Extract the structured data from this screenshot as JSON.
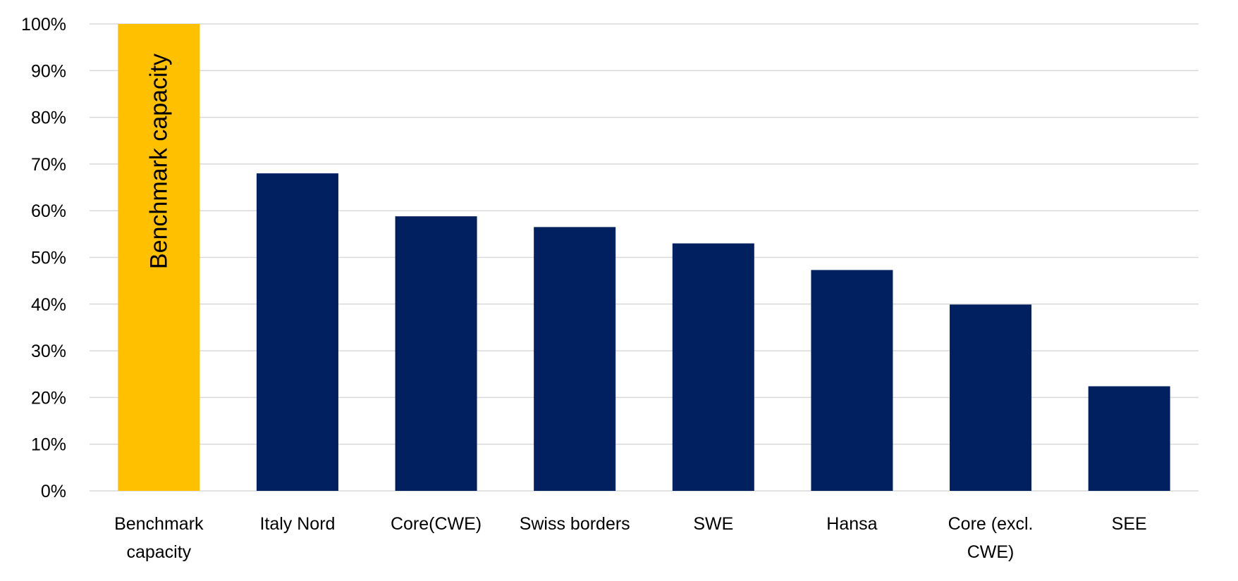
{
  "chart_data": {
    "type": "bar",
    "categories": [
      [
        "Benchmark",
        "capacity"
      ],
      [
        "Italy Nord"
      ],
      [
        "Core(CWE)"
      ],
      [
        "Swiss borders"
      ],
      [
        "SWE"
      ],
      [
        "Hansa"
      ],
      [
        "Core (excl.",
        "CWE)"
      ],
      [
        "SEE"
      ]
    ],
    "values": [
      100,
      68,
      58.8,
      56.5,
      53,
      47.3,
      39.9,
      22.4
    ],
    "bar_colors": [
      "#FFC000",
      "#002060",
      "#002060",
      "#002060",
      "#002060",
      "#002060",
      "#002060",
      "#002060"
    ],
    "bar_labels": [
      "Benchmark capacity",
      "",
      "",
      "",
      "",
      "",
      "",
      ""
    ],
    "ylim": [
      0,
      100
    ],
    "yticks": [
      0,
      10,
      20,
      30,
      40,
      50,
      60,
      70,
      80,
      90,
      100
    ],
    "ytick_format": "%",
    "grid": true,
    "grid_color": "#D9D9D9",
    "legend": false
  }
}
